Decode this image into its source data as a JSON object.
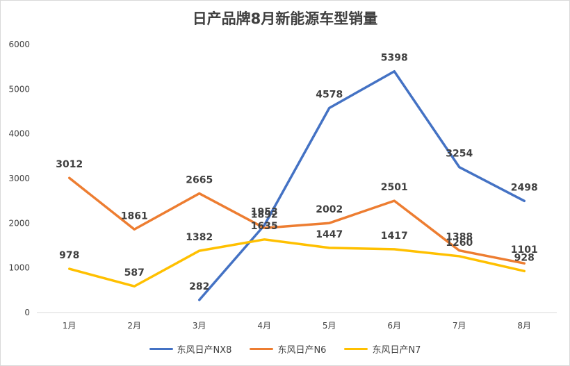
{
  "chart_data": {
    "type": "line",
    "title": "日产品牌8月新能源车型销量",
    "categories": [
      "1月",
      "2月",
      "3月",
      "4月",
      "5月",
      "6月",
      "7月",
      "8月"
    ],
    "ylim": [
      0,
      6000
    ],
    "yticks": [
      "0",
      "1000",
      "2000",
      "3000",
      "4000",
      "5000",
      "6000"
    ],
    "grid": false,
    "legend_position": "bottom",
    "series": [
      {
        "name": "东风日产NX8",
        "color": "#4472C4",
        "values": [
          null,
          null,
          282,
          1953,
          4578,
          5398,
          3254,
          2498
        ]
      },
      {
        "name": "东风日产N6",
        "color": "#ED7D31",
        "values": [
          3012,
          1861,
          2665,
          1892,
          2002,
          2501,
          1388,
          1101
        ]
      },
      {
        "name": "东风日产N7",
        "color": "#FFC000",
        "values": [
          978,
          587,
          1382,
          1635,
          1447,
          1417,
          1260,
          928
        ]
      }
    ]
  }
}
